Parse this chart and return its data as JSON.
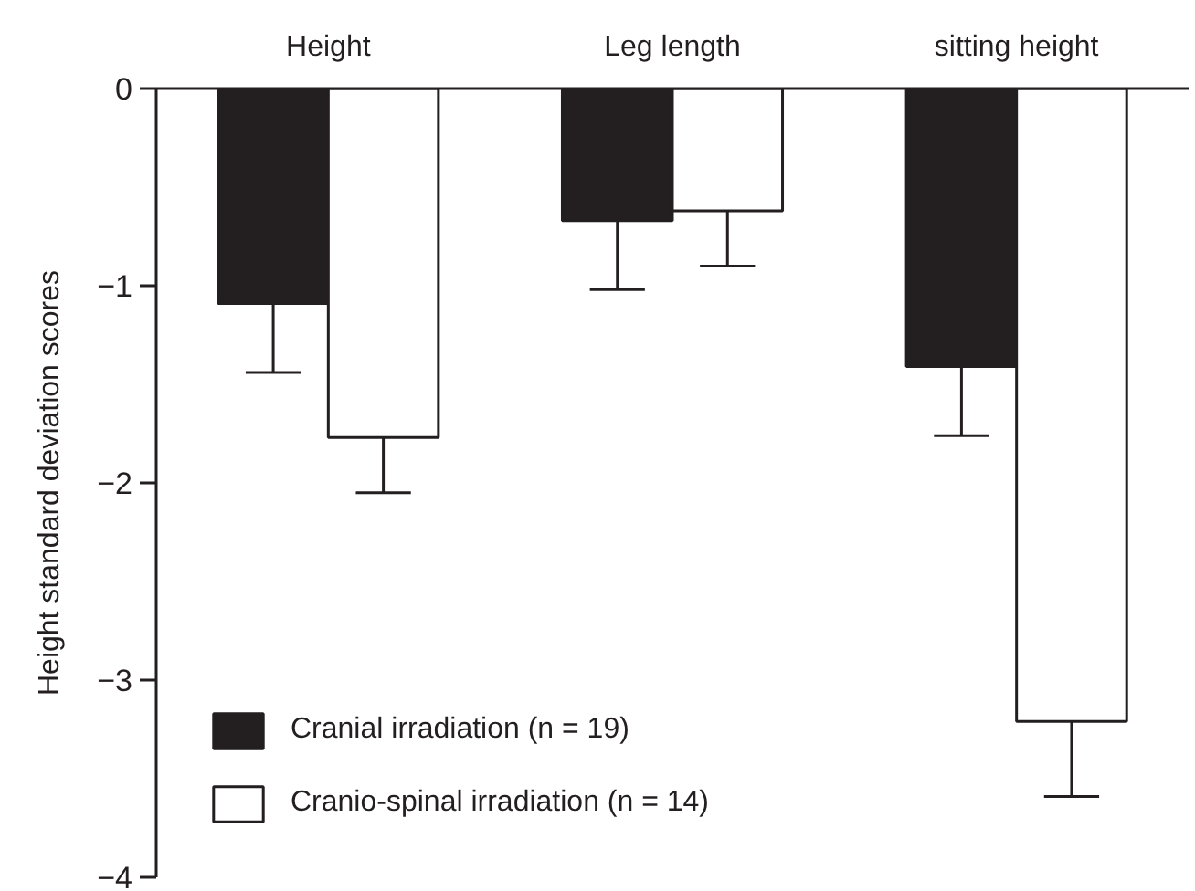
{
  "chart_data": {
    "type": "bar",
    "ylabel": "Height standard deviation scores",
    "categories": [
      "Height",
      "Leg length",
      "sitting height"
    ],
    "series": [
      {
        "name": "Cranial irradiation (n = 19)",
        "color": "#231f20",
        "values": [
          -1.09,
          -0.67,
          -1.41
        ],
        "errors": [
          [
            -1.44,
            -1.09
          ],
          [
            -1.02,
            -0.67
          ],
          [
            -1.76,
            -1.41
          ]
        ]
      },
      {
        "name": "Cranio-spinal irradiation (n = 14)",
        "color": "#ffffff",
        "values": [
          -1.77,
          -0.62,
          -3.21
        ],
        "errors": [
          [
            -2.05,
            -1.77
          ],
          [
            -0.9,
            -0.62
          ],
          [
            -3.59,
            -3.21
          ]
        ]
      }
    ],
    "ylim": [
      -4,
      0
    ],
    "yticks": [
      0,
      {
        "value": -1,
        "label": "−1"
      },
      {
        "value": -2,
        "label": "−2"
      },
      {
        "value": -3,
        "label": "−3"
      },
      {
        "value": -4,
        "label": "−4"
      }
    ],
    "legend": "bottom left"
  }
}
